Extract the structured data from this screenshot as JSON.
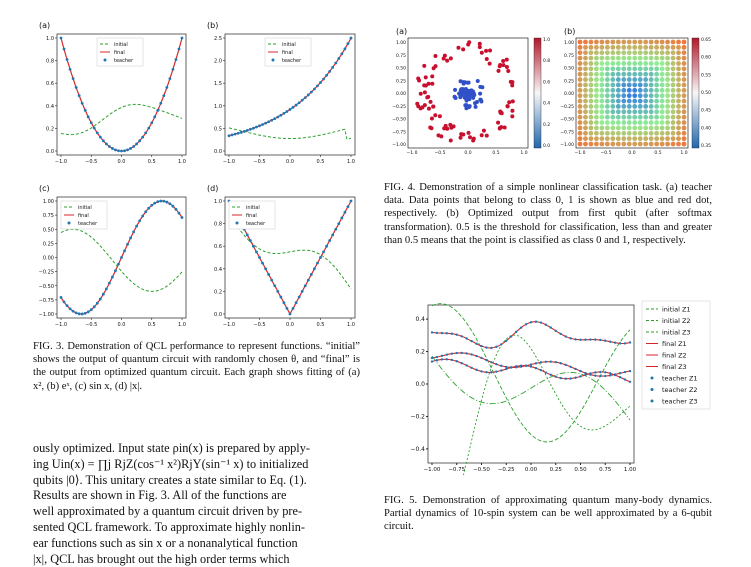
{
  "fig3": {
    "panels": [
      {
        "label": "(a)",
        "yticks": [
          "0.0",
          "0.2",
          "0.4",
          "0.6",
          "0.8",
          "1.0"
        ]
      },
      {
        "label": "(b)",
        "yticks": [
          "0.0",
          "0.5",
          "1.0",
          "1.5",
          "2.0",
          "2.5"
        ]
      },
      {
        "label": "(c)",
        "yticks": [
          "−1.00",
          "−0.75",
          "−0.50",
          "−0.25",
          "0.00",
          "0.25",
          "0.50",
          "0.75",
          "1.00"
        ]
      },
      {
        "label": "(d)",
        "yticks": [
          "0.0",
          "0.2",
          "0.4",
          "0.6",
          "0.8",
          "1.0"
        ]
      }
    ],
    "xticks": [
      "−1.0",
      "−0.5",
      "0.0",
      "0.5",
      "1.0"
    ],
    "legend": [
      "initial",
      "final",
      "teacher"
    ],
    "caption": "FIG. 3.  Demonstration of QCL performance to represent functions. “initial” shows the output of quantum circuit with randomly chosen θ, and “final” is the output from optimized quantum circuit.  Each graph shows fitting of (a) x², (b) eˣ, (c) sin x, (d) |x|."
  },
  "fig4": {
    "panel_a_label": "(a)",
    "panel_b_label": "(b)",
    "ticks": [
      "1.00",
      "0.75",
      "0.50",
      "0.25",
      "0.00",
      "−0.25",
      "−0.50",
      "−0.75",
      "−1.00"
    ],
    "xticks": [
      "−1.0",
      "−0.5",
      "0.0",
      "0.5",
      "1.0"
    ],
    "cbar_a": [
      "1.0",
      "0.8",
      "0.6",
      "0.4",
      "0.2",
      "0.0"
    ],
    "cbar_b": [
      "0.65",
      "0.60",
      "0.55",
      "0.50",
      "0.45",
      "0.40",
      "0.35"
    ],
    "caption": "FIG. 4.  Demonstration of a simple nonlinear classification task.  (a) teacher data.  Data points that belong to class 0, 1 is shown as blue and red dot, respectively.  (b) Optimized output from first qubit (after softmax transformation). 0.5 is the threshold for classification, less than and greater than 0.5 means that the point is classified as class 0 and 1, respectively."
  },
  "fig5": {
    "yticks": [
      "0.4",
      "0.2",
      "0.0",
      "−0.2",
      "−0.4"
    ],
    "xticks": [
      "−1.00",
      "−0.75",
      "−0.50",
      "−0.25",
      "0.00",
      "0.25",
      "0.50",
      "0.75",
      "1.00"
    ],
    "legend": [
      "initial Z1",
      "initial Z2",
      "initial Z3",
      "final Z1",
      "final Z2",
      "final Z3",
      "teacher Z1",
      "teacher Z2",
      "teacher Z3"
    ],
    "caption": "FIG. 5.  Demonstration of approximating quantum many-body dynamics.  Partial dynamics of 10-spin system can be well approximated by a 6-qubit circuit."
  },
  "body": {
    "line1": "ously optimized.  Input state ρin(x) is prepared by apply-",
    "line2": "ing Uin(x) = ∏j RjZ(cos⁻¹ x²)RjY(sin⁻¹ x) to initialized",
    "line3": "qubits |0⟩.  This unitary creates a state similar to Eq. (1).",
    "line4": "    Results are shown in Fig. 3.  All of the functions are",
    "line5": "well approximated by a quantum circuit driven by pre-",
    "line6": "sented QCL framework.  To approximate highly nonlin-",
    "line7": "ear functions such as sin x or a nonanalytical function",
    "line8": "|x|, QCL has brought out the high order terms which"
  },
  "colors": {
    "initial": "#2ca02c",
    "final": "#d62728",
    "teacher": "#1f77b4",
    "red": "#c8102e",
    "blue": "#3050c8"
  }
}
